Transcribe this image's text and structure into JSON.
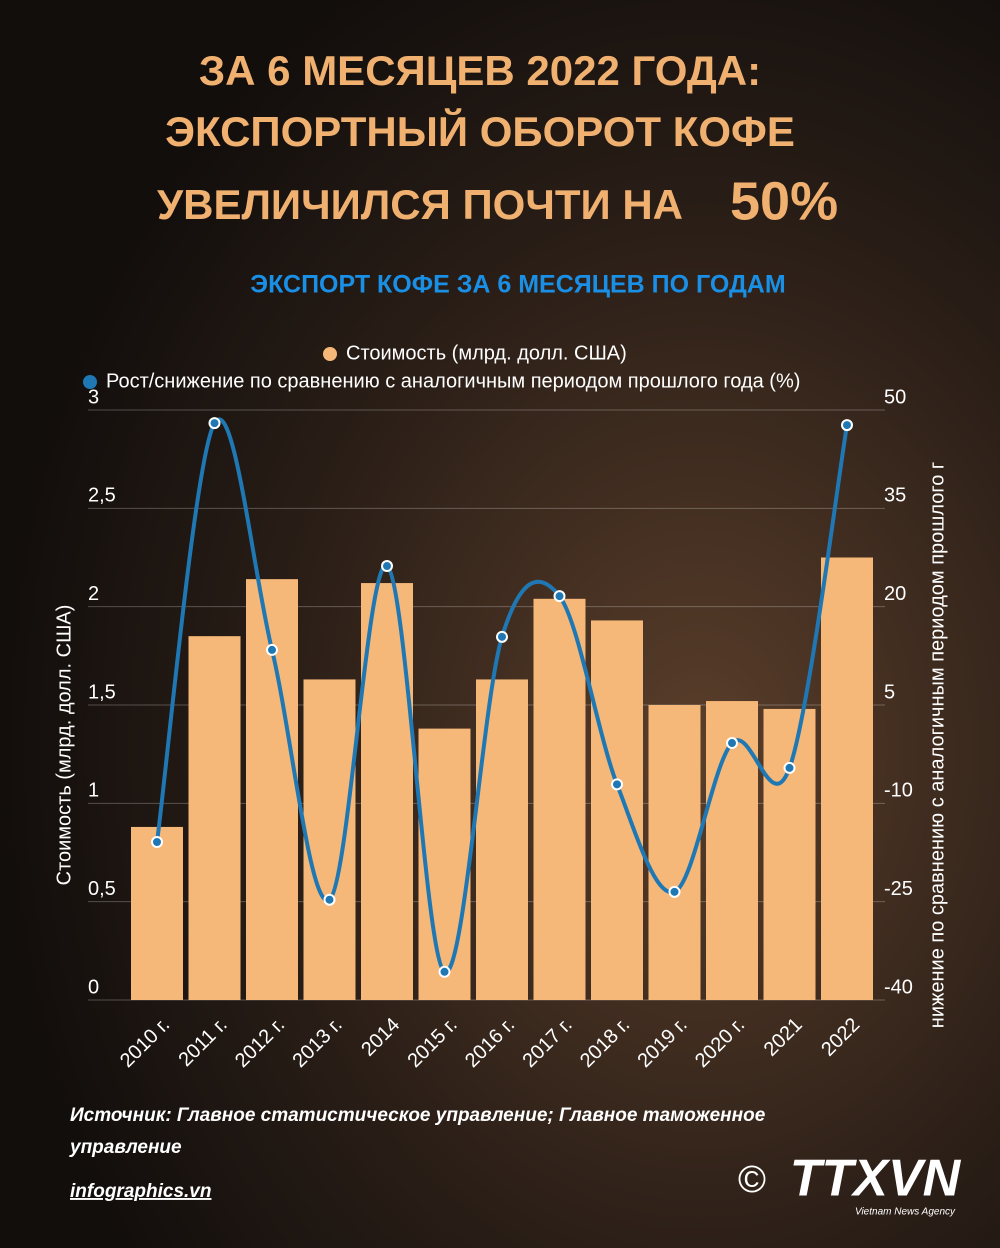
{
  "chart_data": {
    "type": "bar-line",
    "title_lines": [
      "ЗА 6 МЕСЯЦЕВ 2022 ГОДА:",
      "ЭКСПОРТНЫЙ ОБОРОТ КОФЕ",
      "УВЕЛИЧИЛСЯ ПОЧТИ НА"
    ],
    "title_highlight": "50%",
    "subtitle": "ЭКСПОРТ КОФЕ ЗА 6 МЕСЯЦЕВ ПО ГОДАМ",
    "y_label": "Стоимость (млрд. долл. США)",
    "y2_label": "нижение по сравнению с аналогичным периодом прошлого г",
    "categories": [
      "2010 г.",
      "2011 г.",
      "2012 г.",
      "2013 г.",
      "2014",
      "2015 г.",
      "2016 г.",
      "2017 г.",
      "2018 г.",
      "2019 г.",
      "2020 г.",
      "2021",
      "2022"
    ],
    "series": [
      {
        "name": "Стоимость (млрд. долл. США)",
        "type": "bar",
        "color": "#f6b878",
        "values": [
          0.88,
          1.85,
          2.14,
          1.63,
          2.12,
          1.38,
          1.63,
          2.04,
          1.93,
          1.5,
          1.52,
          1.48,
          2.25
        ]
      },
      {
        "name": "Рост/снижение по сравнению с аналогичным периодом прошлого года (%)",
        "type": "line",
        "axis": "y2",
        "color": "#1f78b4",
        "values": [
          -15.9,
          48,
          13.4,
          -24.7,
          26.2,
          -35.7,
          15.4,
          21.6,
          -7.1,
          -23.5,
          -0.8,
          -4.6,
          47.7
        ]
      }
    ],
    "ylim": [
      0,
      3
    ],
    "yticks": [
      0,
      {
        "value": 0.5,
        "label": "0,5"
      },
      1,
      {
        "value": 1.5,
        "label": "1,5"
      },
      2,
      {
        "value": 2.5,
        "label": "2,5"
      },
      3
    ],
    "y2lim": [
      -40,
      50
    ],
    "y2ticks": [
      -40,
      -25,
      -10,
      5,
      20,
      35,
      50
    ],
    "grid": true,
    "source": "Источник: Главное статистическое управление; Главное таможенное управление",
    "website": "infographics.vn",
    "copyright": "©",
    "logo": "TTXVN",
    "logo_sub": "Vietnam News Agency"
  }
}
